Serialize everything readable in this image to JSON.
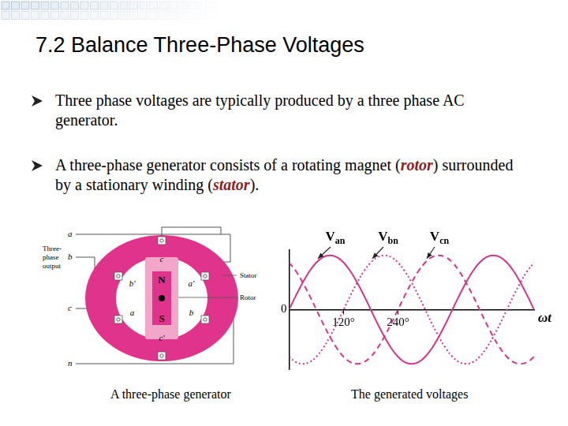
{
  "slide": {
    "title": "7.2 Balance Three-Phase Voltages",
    "bullets": [
      [
        {
          "text": "Three phase voltages are typically produced by a three phase AC generator."
        }
      ],
      [
        {
          "text": "A three-phase generator consists of a rotating magnet ("
        },
        {
          "text": "rotor",
          "emphasis": true
        },
        {
          "text": ") surrounded by a stationary winding ("
        },
        {
          "text": "stator",
          "emphasis": true
        },
        {
          "text": ")."
        }
      ]
    ],
    "generator": {
      "output_label": [
        "Three-",
        "phase",
        "output"
      ],
      "terminals": [
        "a",
        "b",
        "c",
        "n"
      ],
      "coils": [
        "c",
        "b'",
        "a'",
        "a",
        "b",
        "c'"
      ],
      "poles": [
        "N",
        "S"
      ],
      "parts": [
        "Stator",
        "Rotor"
      ]
    },
    "captions": [
      "A three-phase generator",
      "The generated voltages"
    ]
  },
  "chart_data": {
    "type": "line",
    "x_label": "ωt",
    "x": [
      0,
      15,
      30,
      45,
      60,
      75,
      90,
      105,
      120,
      135,
      150,
      165,
      180,
      195,
      210,
      225,
      240,
      255,
      270,
      285,
      300,
      315,
      330,
      345,
      360,
      375,
      390,
      405,
      420,
      435,
      450,
      465,
      480,
      495,
      510,
      525,
      540
    ],
    "xlim": [
      0,
      540
    ],
    "xticks": [
      {
        "value": 120,
        "label": "120°"
      },
      {
        "value": 240,
        "label": "240°"
      }
    ],
    "ylim": [
      -1.1,
      1.1
    ],
    "yticks": [
      0
    ],
    "grid": false,
    "series": [
      {
        "name": "Van",
        "color": "#d6338a",
        "line_style": "solid",
        "values": [
          0,
          0.26,
          0.5,
          0.71,
          0.87,
          0.97,
          1,
          0.97,
          0.87,
          0.71,
          0.5,
          0.26,
          0,
          -0.26,
          -0.5,
          -0.71,
          -0.87,
          -0.97,
          -1,
          -0.97,
          -0.87,
          -0.71,
          -0.5,
          -0.26,
          0,
          0.26,
          0.5,
          0.71,
          0.87,
          0.97,
          1,
          0.97,
          0.87,
          0.71,
          0.5,
          0.26,
          0
        ]
      },
      {
        "name": "Vbn",
        "color": "#d6338a",
        "line_style": "dotted",
        "values": [
          -0.87,
          -0.97,
          -1,
          -0.97,
          -0.87,
          -0.71,
          -0.5,
          -0.26,
          0,
          0.26,
          0.5,
          0.71,
          0.87,
          0.97,
          1,
          0.97,
          0.87,
          0.71,
          0.5,
          0.26,
          0,
          -0.26,
          -0.5,
          -0.71,
          -0.87,
          -0.97,
          -1,
          -0.97,
          -0.87,
          -0.71,
          -0.5,
          -0.26,
          0,
          0.26,
          0.5,
          0.71,
          0.87
        ]
      },
      {
        "name": "Vcn",
        "color": "#d6338a",
        "line_style": "dashed",
        "values": [
          0.87,
          0.71,
          0.5,
          0.26,
          0,
          -0.26,
          -0.5,
          -0.71,
          -0.87,
          -0.97,
          -1,
          -0.97,
          -0.87,
          -0.71,
          -0.5,
          -0.26,
          0,
          0.26,
          0.5,
          0.71,
          0.87,
          0.97,
          1,
          0.97,
          0.87,
          0.71,
          0.5,
          0.26,
          0,
          -0.26,
          -0.5,
          -0.71,
          -0.87,
          -0.97,
          -1,
          -0.97,
          -0.87
        ]
      }
    ]
  }
}
